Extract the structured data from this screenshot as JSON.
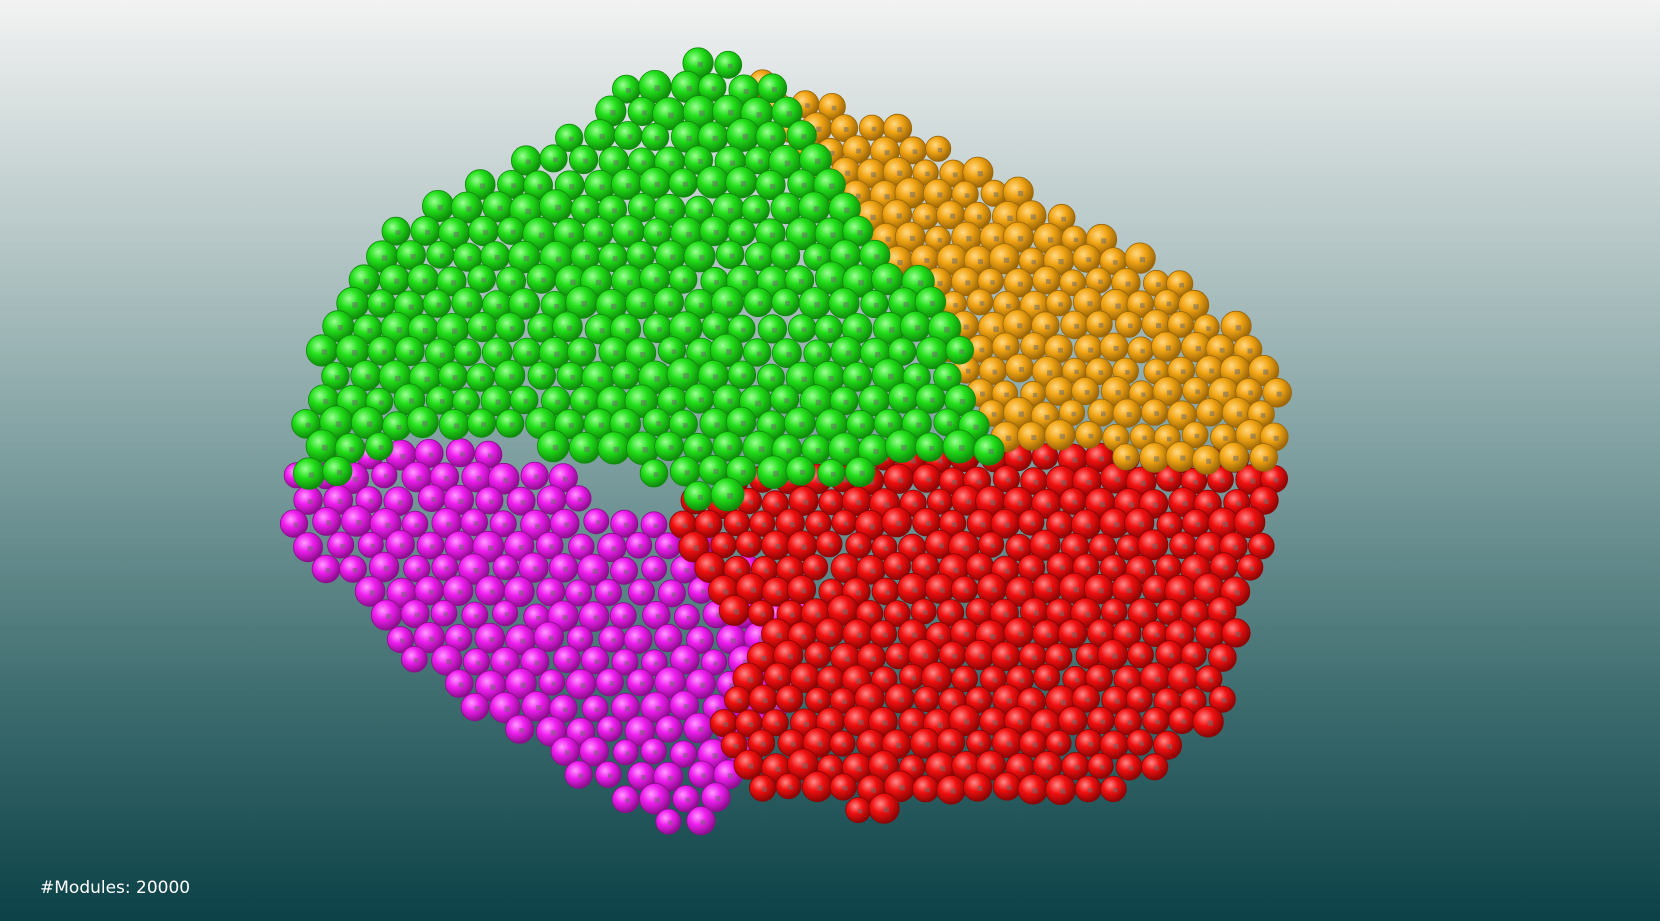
{
  "hud": {
    "module_count_label": "#Modules: 20000"
  },
  "background": {
    "top_color": "#f2f2f2",
    "bottom_color": "#0b4147"
  },
  "clusters": [
    {
      "name": "green-cluster",
      "color": "#22e01a",
      "shade": "#0f8a0c",
      "highlight": "#9dff96"
    },
    {
      "name": "orange-cluster",
      "color": "#f2a514",
      "shade": "#9a6608",
      "highlight": "#ffd985"
    },
    {
      "name": "magenta-cluster",
      "color": "#f01ef0",
      "shade": "#8d0f8d",
      "highlight": "#ff9dff"
    },
    {
      "name": "red-cluster",
      "color": "#f21010",
      "shade": "#8c0505",
      "highlight": "#ff8a8a"
    }
  ]
}
